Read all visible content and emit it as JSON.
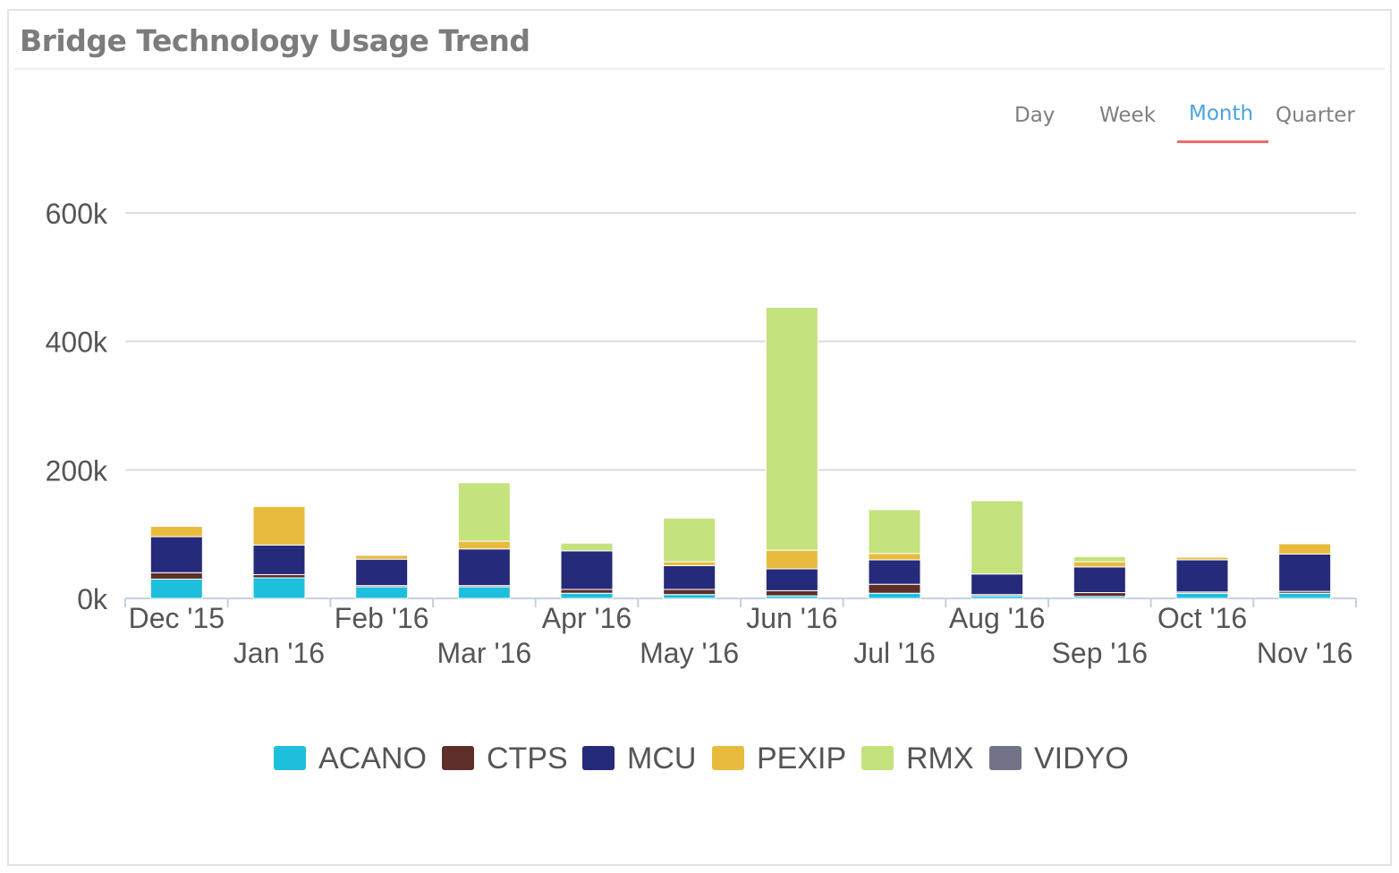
{
  "panel": {
    "title": "Bridge Technology Usage Trend"
  },
  "tabs": [
    {
      "label": "Day",
      "active": false
    },
    {
      "label": "Week",
      "active": false
    },
    {
      "label": "Month",
      "active": true
    },
    {
      "label": "Quarter",
      "active": false
    }
  ],
  "colors": {
    "ACANO": "#1ebfdc",
    "CTPS": "#5e2e28",
    "MCU": "#252a7a",
    "PEXIP": "#e8bb3d",
    "RMX": "#c4e27d",
    "VIDYO": "#727289",
    "tab_active": "#4aa3df",
    "tab_underline": "#ee6b6b",
    "gridline": "#dddddd"
  },
  "chart_data": {
    "type": "bar",
    "stacked": true,
    "categories": [
      "Dec '15",
      "Jan '16",
      "Feb '16",
      "Mar '16",
      "Apr '16",
      "May '16",
      "Jun '16",
      "Jul '16",
      "Aug '16",
      "Sep '16",
      "Oct '16",
      "Nov '16"
    ],
    "y_ticks": [
      "0k",
      "200k",
      "400k",
      "600k"
    ],
    "ylim": [
      0,
      600000
    ],
    "grid": true,
    "legend_position": "bottom",
    "series": [
      {
        "name": "ACANO",
        "values": [
          30000,
          32000,
          18000,
          18000,
          8000,
          6000,
          4000,
          8000,
          4000,
          3000,
          8000,
          8000
        ]
      },
      {
        "name": "CTPS",
        "values": [
          10000,
          5000,
          2000,
          2000,
          6000,
          8000,
          8000,
          14000,
          2000,
          6000,
          2000,
          3000
        ]
      },
      {
        "name": "MCU",
        "values": [
          56000,
          46000,
          41000,
          57000,
          60000,
          37000,
          34000,
          38000,
          32000,
          40000,
          50000,
          58000
        ]
      },
      {
        "name": "PEXIP",
        "values": [
          16000,
          60000,
          6000,
          12000,
          0,
          6000,
          29000,
          10000,
          0,
          8000,
          4000,
          16000
        ]
      },
      {
        "name": "RMX",
        "values": [
          0,
          0,
          0,
          91000,
          12000,
          68000,
          378000,
          68000,
          114000,
          8000,
          0,
          0
        ]
      },
      {
        "name": "VIDYO",
        "values": [
          0,
          0,
          0,
          0,
          0,
          0,
          0,
          0,
          0,
          0,
          0,
          0
        ]
      }
    ]
  }
}
